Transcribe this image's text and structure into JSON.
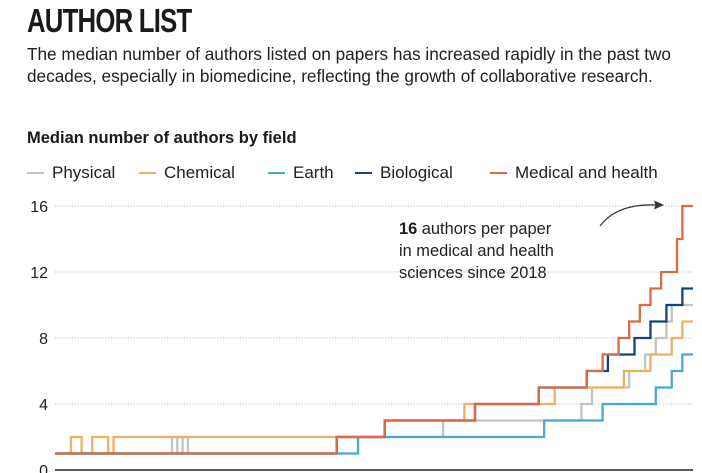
{
  "header": {
    "title": "AUTHOR LIST",
    "subtitle": "The median number of authors listed on papers has increased rapidly in the past two decades, especially in biomedicine, reflecting the growth of collaborative research."
  },
  "annotation": {
    "value": "16",
    "line1_rest": " authors per paper",
    "line2": "in medical and health",
    "line3": "sciences since 2018"
  },
  "colors": {
    "Physical": "#c3c3c3",
    "Chemical": "#eeb063",
    "Earth": "#4aa8d6",
    "Biological": "#17437a",
    "Medical and health": "#d96b45",
    "grid": "#bdbdbd",
    "axis": "#222222"
  },
  "chart_data": {
    "type": "line",
    "title": "Median number of authors by field",
    "xlabel": "",
    "ylabel": "",
    "ylim": [
      0,
      16
    ],
    "y_ticks": [
      0,
      4,
      8,
      12,
      16
    ],
    "grid": true,
    "legend_position": "top",
    "step": true,
    "x": [
      0,
      1,
      2,
      3,
      4,
      5,
      6,
      7,
      8,
      9,
      10,
      11,
      12,
      13,
      14,
      15,
      16,
      17,
      18,
      19,
      20,
      21,
      22,
      23,
      24,
      25,
      26,
      27,
      28,
      29,
      30,
      31,
      32,
      33,
      34,
      35,
      36,
      37,
      38,
      39,
      40,
      41,
      42,
      43,
      44,
      45,
      46,
      47,
      48,
      49,
      50,
      51,
      52,
      53,
      54,
      55,
      56,
      57,
      58,
      59,
      60,
      61,
      62,
      63,
      64,
      65,
      66,
      67,
      68,
      69,
      70,
      71,
      72,
      73,
      74,
      75,
      76,
      77,
      78,
      79,
      80,
      81,
      82,
      83,
      84,
      85,
      86,
      87,
      88,
      89,
      90,
      91,
      92,
      93,
      94,
      95,
      96,
      97,
      98,
      99,
      100,
      101,
      102,
      103,
      104,
      105,
      106,
      107,
      108,
      109,
      110,
      111,
      112,
      113,
      114,
      115,
      116,
      117,
      118,
      119
    ],
    "series": [
      {
        "name": "Physical",
        "values": [
          1,
          1,
          1,
          1,
          1,
          1,
          1,
          1,
          1,
          1,
          1,
          1,
          1,
          1,
          1,
          1,
          1,
          1,
          1,
          1,
          1,
          1,
          2,
          1,
          2,
          1,
          1,
          1,
          1,
          1,
          1,
          1,
          1,
          1,
          1,
          1,
          1,
          1,
          1,
          1,
          1,
          1,
          1,
          1,
          1,
          1,
          1,
          1,
          1,
          1,
          1,
          1,
          1,
          2,
          2,
          2,
          2,
          2,
          2,
          2,
          2,
          2,
          2,
          2,
          2,
          2,
          2,
          2,
          2,
          2,
          2,
          2,
          2,
          3,
          3,
          3,
          3,
          3,
          3,
          3,
          3,
          3,
          3,
          3,
          3,
          3,
          3,
          3,
          3,
          3,
          3,
          3,
          3,
          3,
          3,
          3,
          3,
          3,
          3,
          4,
          4,
          5,
          5,
          5,
          5,
          5,
          5,
          5,
          6,
          6,
          6,
          7,
          7,
          8,
          8,
          9,
          10,
          10,
          10,
          10
        ]
      },
      {
        "name": "Chemical",
        "values": [
          1,
          1,
          1,
          2,
          2,
          1,
          1,
          2,
          2,
          2,
          1,
          2,
          2,
          2,
          2,
          2,
          2,
          2,
          2,
          2,
          2,
          2,
          2,
          2,
          2,
          2,
          2,
          2,
          2,
          2,
          2,
          2,
          2,
          2,
          2,
          2,
          2,
          2,
          2,
          2,
          2,
          2,
          2,
          2,
          2,
          2,
          2,
          2,
          2,
          2,
          2,
          2,
          2,
          2,
          2,
          2,
          2,
          2,
          2,
          2,
          2,
          2,
          3,
          3,
          3,
          3,
          3,
          3,
          3,
          3,
          3,
          3,
          3,
          3,
          3,
          3,
          3,
          4,
          4,
          4,
          4,
          4,
          4,
          4,
          4,
          4,
          4,
          4,
          4,
          4,
          4,
          4,
          4,
          4,
          5,
          5,
          5,
          5,
          5,
          5,
          5,
          5,
          5,
          5,
          5,
          5,
          5,
          6,
          6,
          6,
          6,
          6,
          7,
          7,
          7,
          7,
          8,
          8,
          9,
          9
        ]
      },
      {
        "name": "Earth",
        "values": [
          1,
          1,
          1,
          1,
          1,
          1,
          1,
          1,
          1,
          1,
          1,
          1,
          1,
          1,
          1,
          1,
          1,
          1,
          1,
          1,
          1,
          1,
          1,
          1,
          1,
          1,
          1,
          1,
          1,
          1,
          1,
          1,
          1,
          1,
          1,
          1,
          1,
          1,
          1,
          1,
          1,
          1,
          1,
          1,
          1,
          1,
          1,
          1,
          1,
          1,
          1,
          1,
          1,
          1,
          1,
          1,
          1,
          2,
          2,
          2,
          2,
          2,
          2,
          2,
          2,
          2,
          2,
          2,
          2,
          2,
          2,
          2,
          2,
          2,
          2,
          2,
          2,
          2,
          2,
          2,
          2,
          2,
          2,
          2,
          2,
          2,
          2,
          2,
          2,
          2,
          2,
          2,
          3,
          3,
          3,
          3,
          3,
          3,
          3,
          3,
          3,
          3,
          3,
          4,
          4,
          4,
          4,
          4,
          4,
          4,
          4,
          4,
          4,
          5,
          5,
          5,
          6,
          6,
          7,
          7
        ]
      },
      {
        "name": "Biological",
        "values": [
          1,
          1,
          1,
          1,
          1,
          1,
          1,
          1,
          1,
          1,
          1,
          1,
          1,
          1,
          1,
          1,
          1,
          1,
          1,
          1,
          1,
          1,
          1,
          1,
          1,
          1,
          1,
          1,
          1,
          1,
          1,
          1,
          1,
          1,
          1,
          1,
          1,
          1,
          1,
          1,
          1,
          1,
          1,
          1,
          1,
          1,
          1,
          1,
          1,
          1,
          1,
          1,
          1,
          2,
          2,
          2,
          2,
          2,
          2,
          2,
          2,
          2,
          3,
          3,
          3,
          3,
          3,
          3,
          3,
          3,
          3,
          3,
          3,
          3,
          3,
          3,
          3,
          3,
          3,
          4,
          4,
          4,
          4,
          4,
          4,
          4,
          4,
          4,
          4,
          4,
          4,
          5,
          5,
          5,
          5,
          5,
          5,
          5,
          5,
          5,
          6,
          6,
          6,
          6,
          7,
          7,
          7,
          7,
          7,
          8,
          8,
          8,
          9,
          9,
          9,
          10,
          10,
          10,
          11,
          11
        ]
      },
      {
        "name": "Medical and health",
        "values": [
          1,
          1,
          1,
          1,
          1,
          1,
          1,
          1,
          1,
          1,
          1,
          1,
          1,
          1,
          1,
          1,
          1,
          1,
          1,
          1,
          1,
          1,
          1,
          1,
          1,
          1,
          1,
          1,
          1,
          1,
          1,
          1,
          1,
          1,
          1,
          1,
          1,
          1,
          1,
          1,
          1,
          1,
          1,
          1,
          1,
          1,
          1,
          1,
          1,
          1,
          1,
          1,
          1,
          2,
          2,
          2,
          2,
          2,
          2,
          2,
          2,
          2,
          3,
          3,
          3,
          3,
          3,
          3,
          3,
          3,
          3,
          3,
          3,
          3,
          3,
          3,
          3,
          3,
          3,
          4,
          4,
          4,
          4,
          4,
          4,
          4,
          4,
          4,
          4,
          4,
          4,
          5,
          5,
          5,
          5,
          5,
          5,
          5,
          5,
          5,
          6,
          6,
          6,
          7,
          7,
          7,
          8,
          8,
          9,
          9,
          10,
          10,
          11,
          11,
          12,
          12,
          12,
          14,
          16,
          16
        ]
      }
    ]
  }
}
